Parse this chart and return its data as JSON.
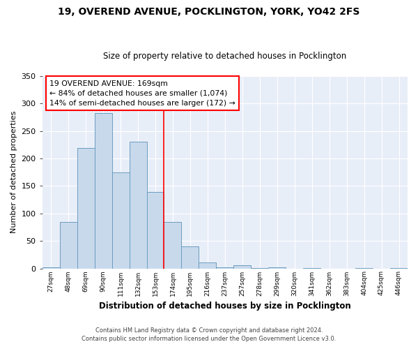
{
  "title": "19, OVEREND AVENUE, POCKLINGTON, YORK, YO42 2FS",
  "subtitle": "Size of property relative to detached houses in Pocklington",
  "xlabel": "Distribution of detached houses by size in Pocklington",
  "ylabel": "Number of detached properties",
  "bar_color": "#c8d9ec",
  "bar_edge_color": "#6b9dbf",
  "background_color": "#e8eef8",
  "grid_color": "#ffffff",
  "categories": [
    "27sqm",
    "48sqm",
    "69sqm",
    "90sqm",
    "111sqm",
    "132sqm",
    "153sqm",
    "174sqm",
    "195sqm",
    "216sqm",
    "237sqm",
    "257sqm",
    "278sqm",
    "299sqm",
    "320sqm",
    "341sqm",
    "362sqm",
    "383sqm",
    "404sqm",
    "425sqm",
    "446sqm"
  ],
  "values": [
    2,
    85,
    219,
    283,
    175,
    231,
    139,
    84,
    40,
    11,
    2,
    6,
    1,
    2,
    0,
    1,
    0,
    0,
    1,
    0,
    1
  ],
  "ylim": [
    0,
    350
  ],
  "yticks": [
    0,
    50,
    100,
    150,
    200,
    250,
    300,
    350
  ],
  "annotation_title": "19 OVEREND AVENUE: 169sqm",
  "annotation_line1": "← 84% of detached houses are smaller (1,074)",
  "annotation_line2": "14% of semi-detached houses are larger (172) →",
  "vline_position": 6.5,
  "footer_line1": "Contains HM Land Registry data © Crown copyright and database right 2024.",
  "footer_line2": "Contains public sector information licensed under the Open Government Licence v3.0."
}
